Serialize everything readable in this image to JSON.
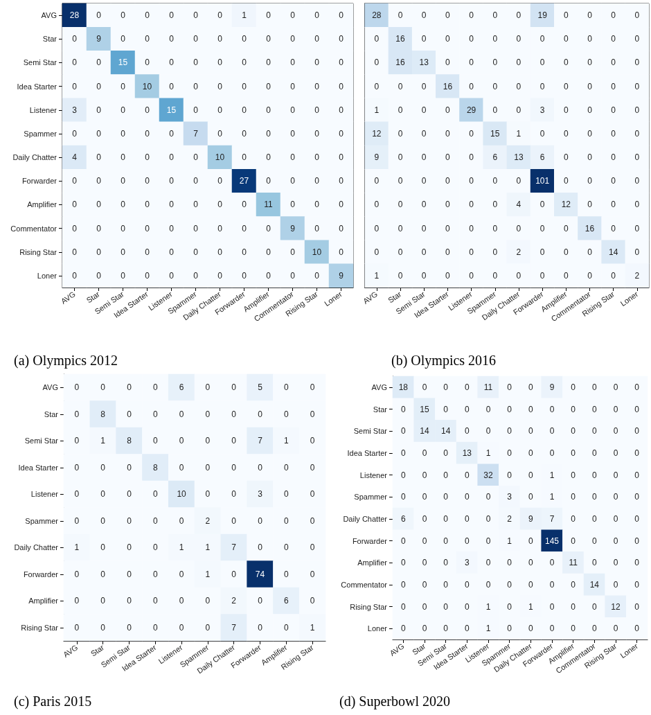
{
  "chart_data": [
    {
      "type": "heatmap",
      "title": "(a) Olympics 2012",
      "categories": [
        "AVG",
        "Star",
        "Semi Star",
        "Idea Starter",
        "Listener",
        "Spammer",
        "Daily Chatter",
        "Forwarder",
        "Amplifier",
        "Commentator",
        "Rising Star",
        "Loner"
      ],
      "y_categories": [
        "AVG",
        "Star",
        "Semi Star",
        "Idea Starter",
        "Listener",
        "Spammer",
        "Daily Chatter",
        "Forwarder",
        "Amplifier",
        "Commentator",
        "Rising Star",
        "Loner"
      ],
      "cells": [
        [
          28,
          0,
          0,
          0,
          0,
          0,
          0,
          1,
          0,
          0,
          0,
          0
        ],
        [
          0,
          9,
          0,
          0,
          0,
          0,
          0,
          0,
          0,
          0,
          0,
          0
        ],
        [
          0,
          0,
          15,
          0,
          0,
          0,
          0,
          0,
          0,
          0,
          0,
          0
        ],
        [
          0,
          0,
          0,
          10,
          0,
          0,
          0,
          0,
          0,
          0,
          0,
          0
        ],
        [
          3,
          0,
          0,
          0,
          15,
          0,
          0,
          0,
          0,
          0,
          0,
          0
        ],
        [
          0,
          0,
          0,
          0,
          0,
          7,
          0,
          0,
          0,
          0,
          0,
          0
        ],
        [
          4,
          0,
          0,
          0,
          0,
          0,
          10,
          0,
          0,
          0,
          0,
          0
        ],
        [
          0,
          0,
          0,
          0,
          0,
          0,
          0,
          27,
          0,
          0,
          0,
          0
        ],
        [
          0,
          0,
          0,
          0,
          0,
          0,
          0,
          0,
          11,
          0,
          0,
          0
        ],
        [
          0,
          0,
          0,
          0,
          0,
          0,
          0,
          0,
          0,
          9,
          0,
          0
        ],
        [
          0,
          0,
          0,
          0,
          0,
          0,
          0,
          0,
          0,
          0,
          10,
          0
        ],
        [
          0,
          0,
          0,
          0,
          0,
          0,
          0,
          0,
          0,
          0,
          0,
          9
        ]
      ],
      "data_labels": true
    },
    {
      "type": "heatmap",
      "title": "(b) Olympics 2016",
      "tick_labels": "x",
      "categories": [
        "AVG",
        "Star",
        "Semi Star",
        "Idea Starter",
        "Listener",
        "Spammer",
        "Daily Chatter",
        "Forwarder",
        "Amplifier",
        "Commentator",
        "Rising Star",
        "Loner"
      ],
      "y_categories": [
        null,
        null,
        null,
        null,
        null,
        null,
        null,
        null,
        null,
        null,
        null,
        null
      ],
      "cells": [
        [
          28,
          0,
          0,
          0,
          0,
          0,
          0,
          19,
          0,
          0,
          0,
          0
        ],
        [
          0,
          16,
          0,
          0,
          0,
          0,
          0,
          0,
          0,
          0,
          0,
          0
        ],
        [
          0,
          16,
          13,
          0,
          0,
          0,
          0,
          0,
          0,
          0,
          0,
          0
        ],
        [
          0,
          0,
          0,
          16,
          0,
          0,
          0,
          0,
          0,
          0,
          0,
          0
        ],
        [
          1,
          0,
          0,
          0,
          29,
          0,
          0,
          3,
          0,
          0,
          0,
          0
        ],
        [
          12,
          0,
          0,
          0,
          0,
          15,
          1,
          0,
          0,
          0,
          0,
          0
        ],
        [
          9,
          0,
          0,
          0,
          0,
          6,
          13,
          6,
          0,
          0,
          0,
          0
        ],
        [
          0,
          0,
          0,
          0,
          0,
          0,
          0,
          101,
          0,
          0,
          0,
          0
        ],
        [
          0,
          0,
          0,
          0,
          0,
          0,
          4,
          0,
          12,
          0,
          0,
          0
        ],
        [
          0,
          0,
          0,
          0,
          0,
          0,
          0,
          0,
          0,
          16,
          0,
          0
        ],
        [
          0,
          0,
          0,
          0,
          0,
          0,
          2,
          0,
          0,
          0,
          14,
          0
        ],
        [
          1,
          0,
          0,
          0,
          0,
          0,
          0,
          0,
          0,
          0,
          0,
          2
        ]
      ],
      "data_labels": true
    },
    {
      "type": "heatmap",
      "title": "(c) Paris 2015",
      "categories": [
        "AVG",
        "Star",
        "Semi Star",
        "Idea Starter",
        "Listener",
        "Spammer",
        "Daily Chatter",
        "Forwarder",
        "Amplifier",
        "Rising Star"
      ],
      "y_categories": [
        "AVG",
        "Star",
        "Semi Star",
        "Idea Starter",
        "Listener",
        "Spammer",
        "Daily Chatter",
        "Forwarder",
        "Amplifier",
        "Rising Star"
      ],
      "cells": [
        [
          0,
          0,
          0,
          0,
          6,
          0,
          0,
          5,
          0,
          0
        ],
        [
          0,
          8,
          0,
          0,
          0,
          0,
          0,
          0,
          0,
          0
        ],
        [
          0,
          1,
          8,
          0,
          0,
          0,
          0,
          7,
          1,
          0
        ],
        [
          0,
          0,
          0,
          8,
          0,
          0,
          0,
          0,
          0,
          0
        ],
        [
          0,
          0,
          0,
          0,
          10,
          0,
          0,
          3,
          0,
          0
        ],
        [
          0,
          0,
          0,
          0,
          0,
          2,
          0,
          0,
          0,
          0
        ],
        [
          1,
          0,
          0,
          0,
          1,
          1,
          7,
          0,
          0,
          0
        ],
        [
          0,
          0,
          0,
          0,
          0,
          1,
          0,
          74,
          0,
          0
        ],
        [
          0,
          0,
          0,
          0,
          0,
          0,
          2,
          0,
          6,
          0
        ],
        [
          0,
          0,
          0,
          0,
          0,
          0,
          7,
          0,
          0,
          1
        ]
      ],
      "data_labels": true
    },
    {
      "type": "heatmap",
      "title": "(d) Superbowl 2020",
      "categories": [
        "AVG",
        "Star",
        "Semi Star",
        "Idea Starter",
        "Listener",
        "Spammer",
        "Daily Chatter",
        "Forwarder",
        "Amplifier",
        "Commentator",
        "Rising Star",
        "Loner"
      ],
      "y_categories": [
        "AVG",
        "Star",
        "Semi Star",
        "Idea Starter",
        "Listener",
        "Spammer",
        "Daily Chatter",
        "Forwarder",
        "Amplifier",
        "Commentator",
        "Rising Star",
        "Loner"
      ],
      "cells": [
        [
          18,
          0,
          0,
          0,
          11,
          0,
          0,
          9,
          0,
          0,
          0,
          0
        ],
        [
          0,
          15,
          0,
          0,
          0,
          0,
          0,
          0,
          0,
          0,
          0,
          0
        ],
        [
          0,
          14,
          14,
          0,
          0,
          0,
          0,
          0,
          0,
          0,
          0,
          0
        ],
        [
          0,
          0,
          0,
          13,
          1,
          0,
          0,
          0,
          0,
          0,
          0,
          0
        ],
        [
          0,
          0,
          0,
          0,
          32,
          0,
          0,
          1,
          0,
          0,
          0,
          0
        ],
        [
          0,
          0,
          0,
          0,
          0,
          3,
          0,
          1,
          0,
          0,
          0,
          0
        ],
        [
          6,
          0,
          0,
          0,
          0,
          2,
          9,
          7,
          0,
          0,
          0,
          0
        ],
        [
          0,
          0,
          0,
          0,
          0,
          1,
          0,
          145,
          0,
          0,
          0,
          0
        ],
        [
          0,
          0,
          0,
          3,
          0,
          0,
          0,
          0,
          11,
          0,
          0,
          0
        ],
        [
          0,
          0,
          0,
          0,
          0,
          0,
          0,
          0,
          0,
          14,
          0,
          0
        ],
        [
          0,
          0,
          0,
          0,
          1,
          0,
          1,
          0,
          0,
          0,
          12,
          0
        ],
        [
          0,
          0,
          0,
          0,
          1,
          0,
          0,
          0,
          0,
          0,
          0,
          0
        ]
      ],
      "data_labels": true
    }
  ]
}
